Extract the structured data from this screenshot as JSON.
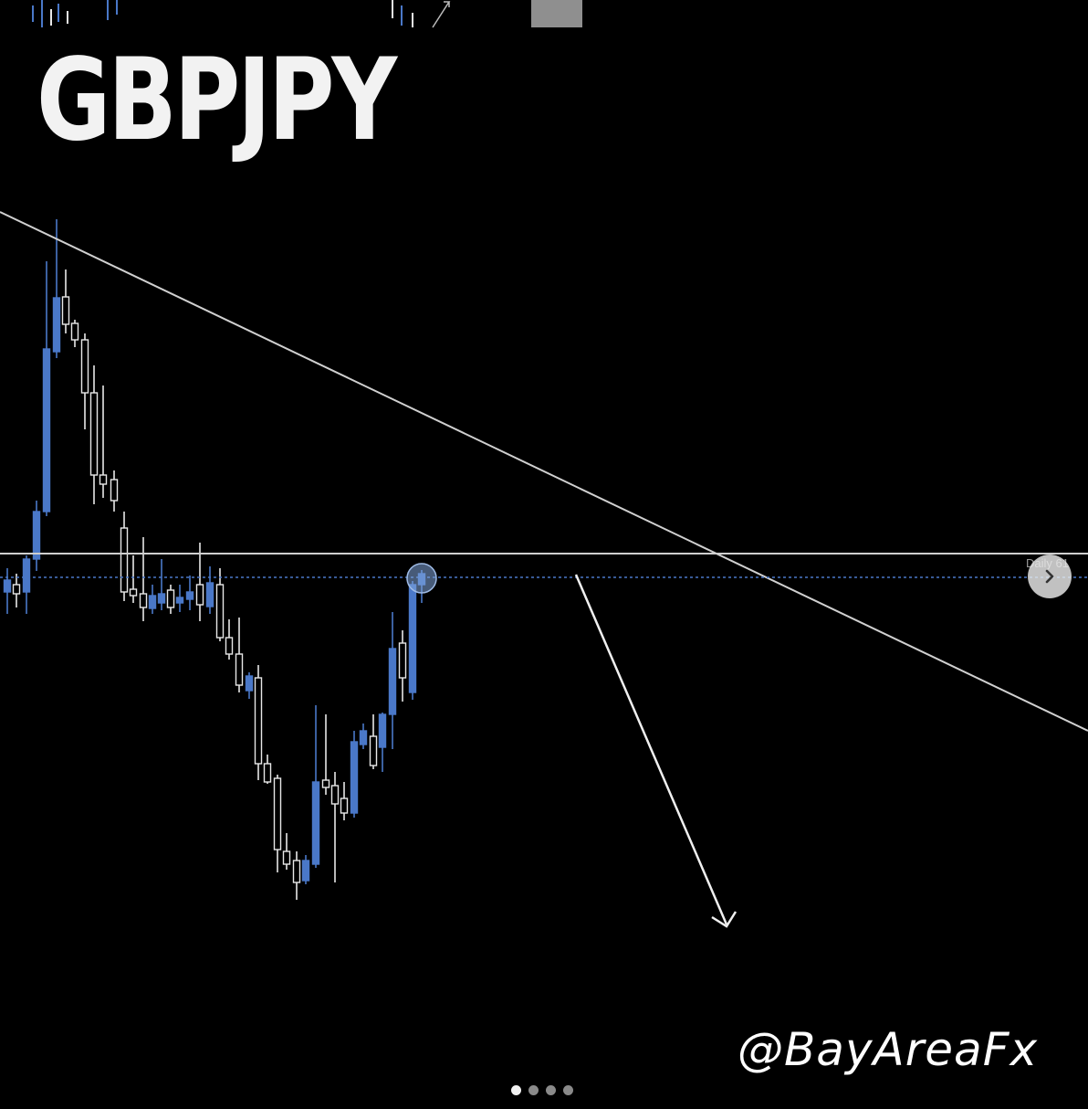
{
  "post": {
    "title": "GBPJPY",
    "watermark": "@BayAreaFx",
    "level_label": "Daily 61",
    "carousel": {
      "dots": 4,
      "active_index": 0
    }
  },
  "colors": {
    "background": "#000000",
    "bull_candle": "#4a78c8",
    "bear_candle": "#e8e8e8",
    "trendline": "#d0d0d0",
    "level_dotted": "#4a78c8",
    "marker": "#8fb0e0"
  },
  "icons": {
    "next": "chevron-right-icon",
    "forecast": "arrow-down-right-icon"
  }
}
